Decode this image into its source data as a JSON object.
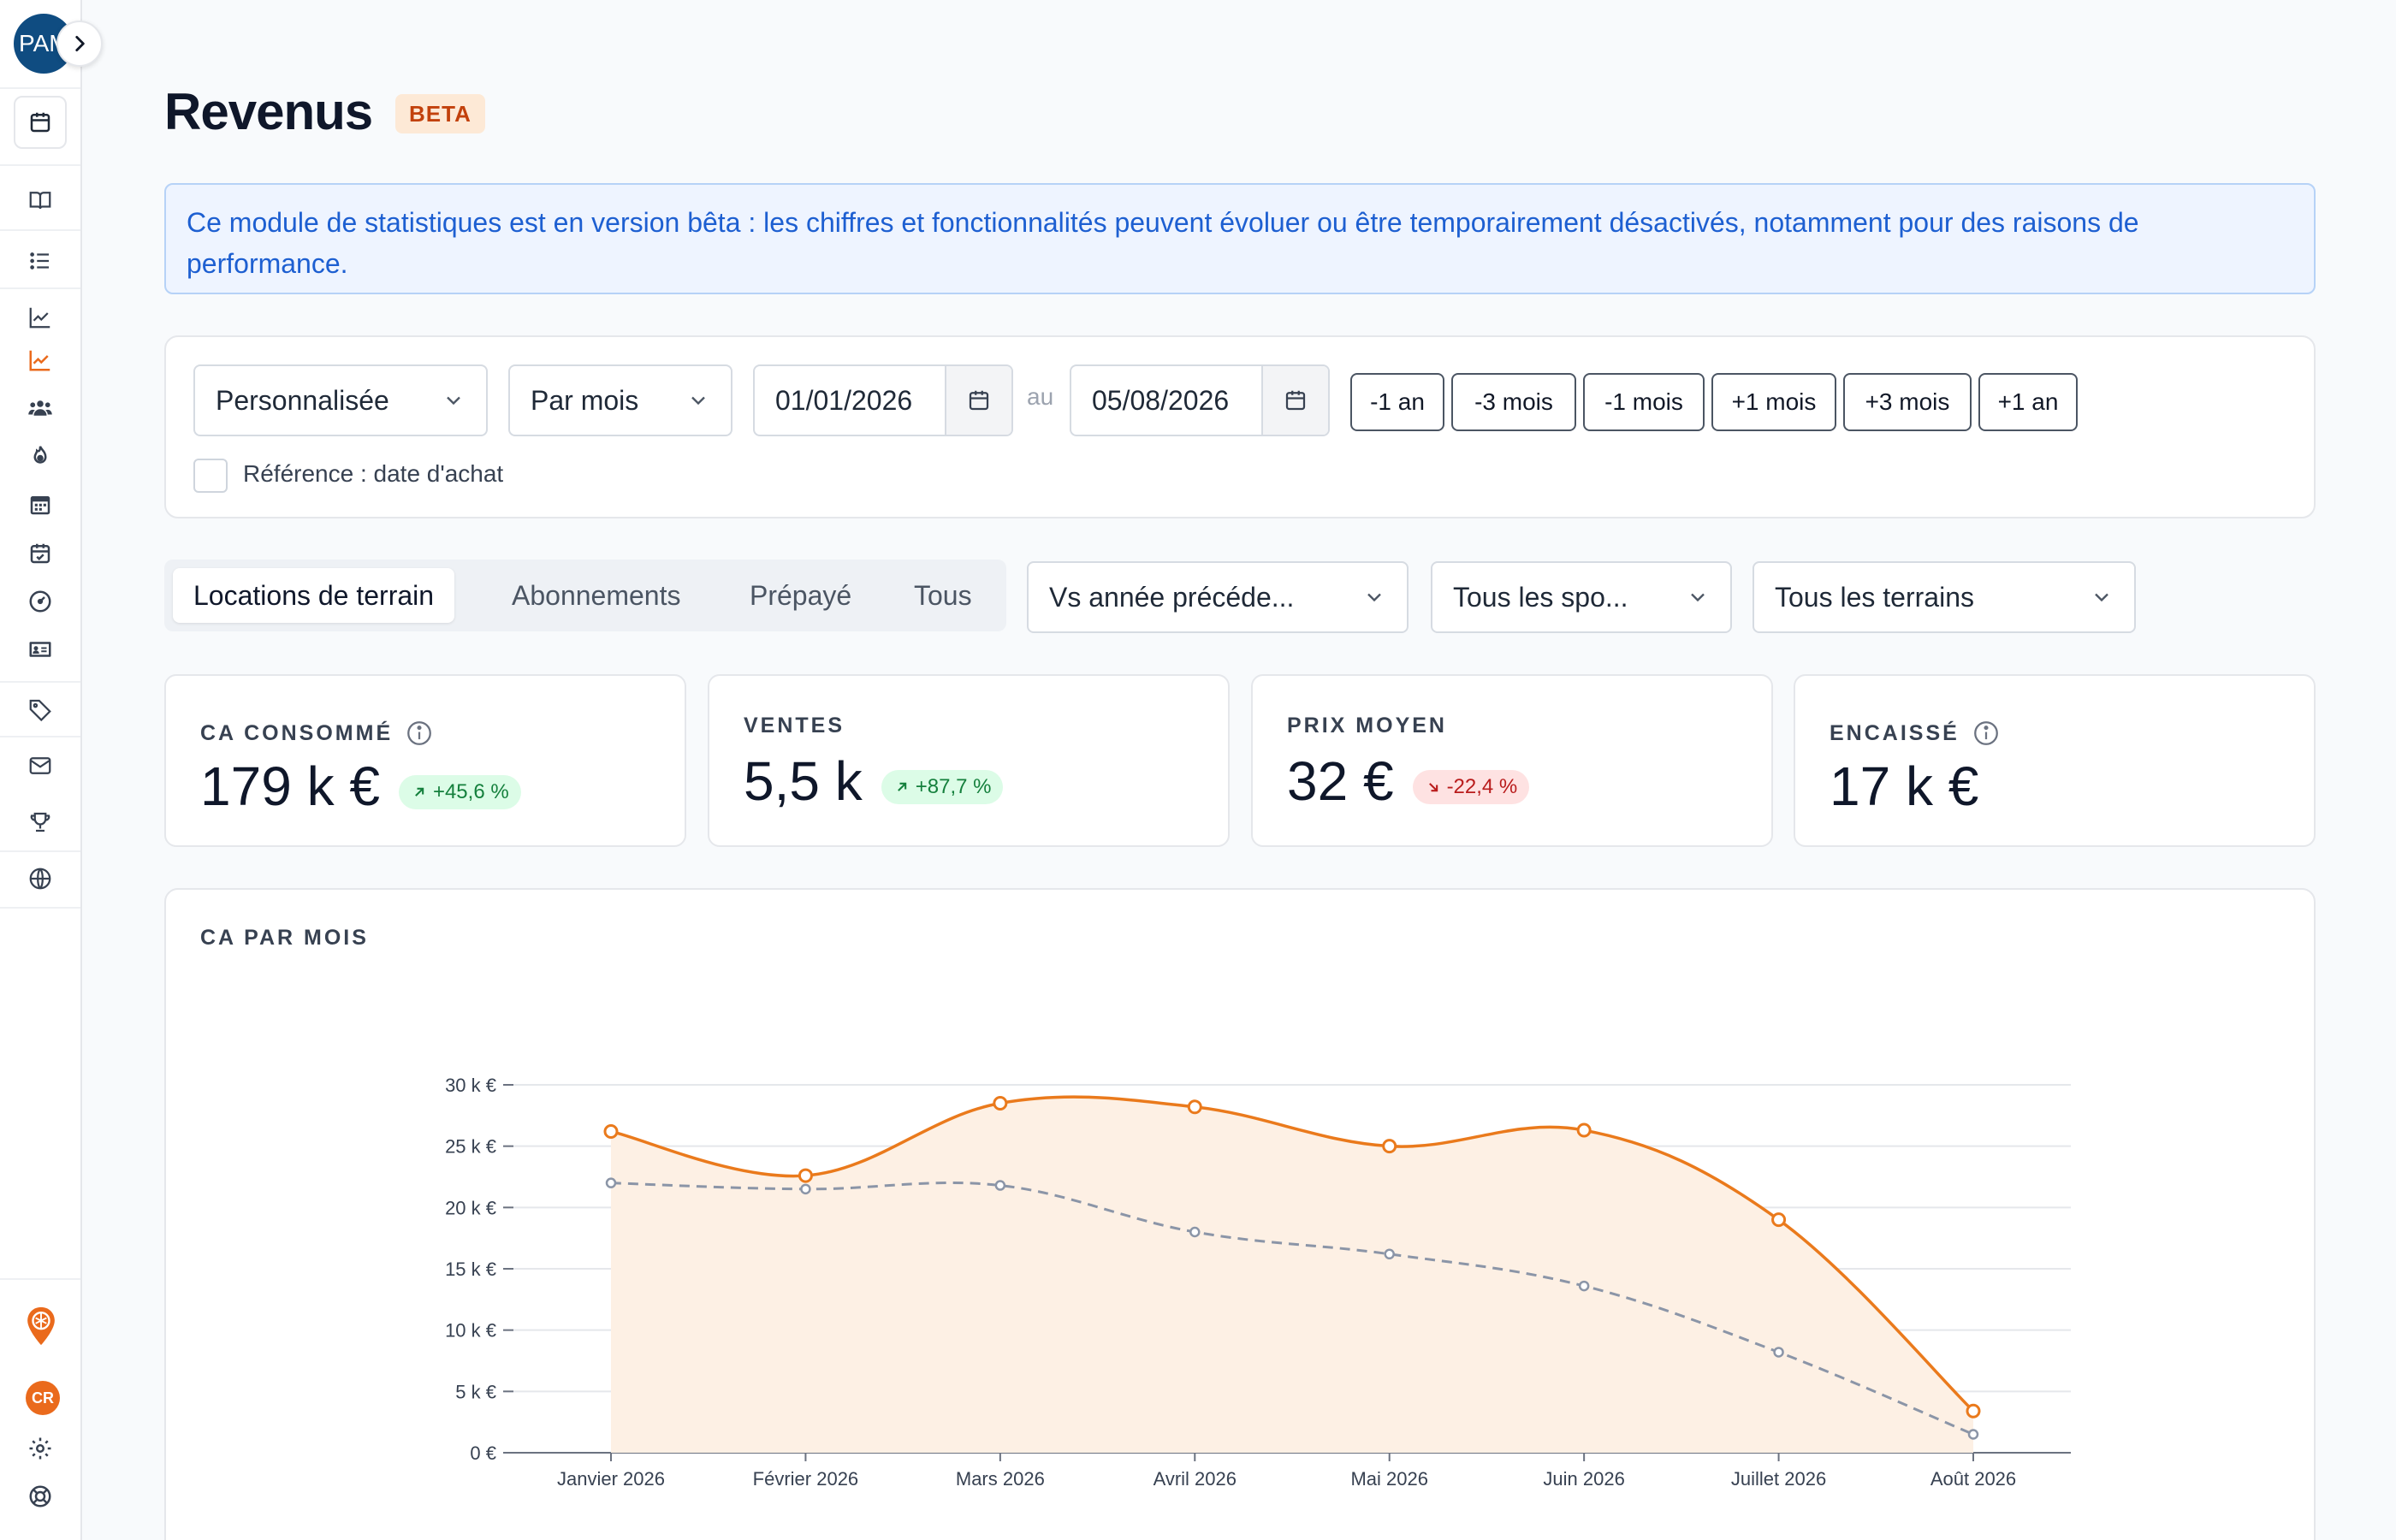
{
  "sidebar": {
    "avatar_initials": "PAM",
    "user_badge": "CR",
    "icons": [
      "calendar-icon",
      "book-icon",
      "list-icon",
      "chart-icon",
      "chart-active-icon",
      "users-icon",
      "flame-icon",
      "calendar-grid-icon",
      "calendar-check-icon",
      "gauge-icon",
      "id-card-icon",
      "tag-icon",
      "mail-icon",
      "trophy-icon",
      "globe-icon",
      "location-pin-icon",
      "settings-icon",
      "help-icon"
    ],
    "accent_color": "#ea6a1c"
  },
  "header": {
    "title": "Revenus",
    "badge": "BETA"
  },
  "banner": {
    "text": "Ce module de statistiques est en version bêta : les chiffres et fonctionnalités peuvent évoluer ou être temporairement désactivés, notamment pour des raisons de performance."
  },
  "filters": {
    "period_type": "Personnalisée",
    "granularity": "Par mois",
    "date_from": "01/01/2026",
    "date_sep": "au",
    "date_to": "05/08/2026",
    "quick": [
      "-1 an",
      "-3 mois",
      "-1 mois",
      "+1 mois",
      "+3 mois",
      "+1 an"
    ],
    "reference_label": "Référence : date d'achat"
  },
  "tabs": [
    "Locations de terrain",
    "Abonnements",
    "Prépayé",
    "Tous"
  ],
  "selects": {
    "comparison": "Vs année précéde...",
    "sports": "Tous les spo...",
    "terrains": "Tous les terrains"
  },
  "stats": [
    {
      "label": "CA CONSOMMÉ",
      "value": "179 k €",
      "delta": "+45,6 %",
      "trend": "up",
      "info": true
    },
    {
      "label": "VENTES",
      "value": "5,5 k",
      "delta": "+87,7 %",
      "trend": "up",
      "info": false
    },
    {
      "label": "PRIX MOYEN",
      "value": "32 €",
      "delta": "-22,4 %",
      "trend": "down",
      "info": false
    },
    {
      "label": "ENCAISSÉ",
      "value": "17 k €",
      "delta": "",
      "trend": "",
      "info": true
    }
  ],
  "chart_data": {
    "type": "line",
    "title": "CA PAR MOIS",
    "categories": [
      "Janvier 2026",
      "Février 2026",
      "Mars 2026",
      "Avril 2026",
      "Mai 2026",
      "Juin 2026",
      "Juillet 2026",
      "Août 2026"
    ],
    "series": [
      {
        "values": [
          26.2,
          22.6,
          28.5,
          28.2,
          25.0,
          26.3,
          19.0,
          3.4
        ],
        "color": "#ea7a1c",
        "style": "solid",
        "fill": "#fdf0e4"
      },
      {
        "values": [
          22.0,
          21.5,
          21.8,
          18.0,
          16.2,
          13.6,
          8.2,
          1.5
        ],
        "color": "#8b95a7",
        "style": "dashed"
      }
    ],
    "y_ticks": [
      "0 €",
      "5 k €",
      "10 k €",
      "15 k €",
      "20 k €",
      "25 k €",
      "30 k €"
    ],
    "ylim": [
      0,
      30
    ],
    "grid": true
  }
}
